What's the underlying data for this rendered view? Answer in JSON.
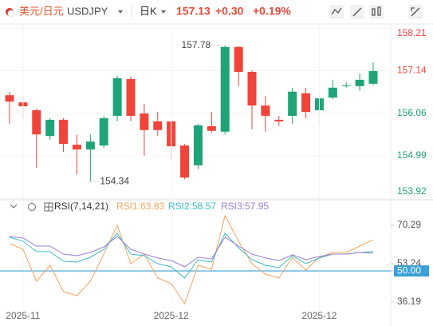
{
  "header": {
    "symbol_name": "美元/日元",
    "symbol": "USDJPY",
    "period": "日K",
    "price": "157.13",
    "change": "+0.30",
    "change_pct": "+0.19%"
  },
  "chart_data": [
    {
      "type": "candlestick",
      "categories": [
        null,
        "2025-11",
        null,
        null,
        null,
        null,
        null,
        null,
        null,
        null,
        null,
        null,
        "2025-12",
        null,
        null,
        null,
        null,
        null,
        null,
        null,
        null,
        null,
        null,
        "2025-12",
        null,
        null,
        null,
        null
      ],
      "open": [
        156.52,
        156.34,
        156.14,
        155.49,
        155.9,
        155.27,
        155.15,
        155.25,
        156.0,
        156.93,
        156.06,
        155.86,
        155.86,
        155.25,
        154.75,
        155.74,
        155.6,
        157.74,
        157.11,
        156.26,
        155.9,
        156.0,
        156.57,
        156.14,
        156.46,
        156.75,
        156.75,
        156.81
      ],
      "high": [
        156.61,
        156.5,
        156.18,
        155.94,
        155.94,
        155.53,
        155.53,
        156.0,
        157.01,
        156.99,
        156.3,
        156.1,
        155.9,
        155.29,
        155.8,
        156.1,
        157.78,
        157.76,
        157.15,
        156.5,
        156.0,
        156.71,
        156.71,
        156.61,
        156.91,
        156.85,
        157.07,
        157.35
      ],
      "low": [
        155.8,
        155.94,
        154.69,
        155.39,
        155.09,
        154.52,
        154.34,
        155.19,
        155.86,
        155.86,
        154.99,
        155.49,
        154.89,
        154.4,
        154.65,
        155.58,
        155.53,
        156.75,
        155.66,
        155.6,
        155.74,
        155.8,
        155.94,
        155.78,
        156.42,
        156.71,
        156.63,
        156.77
      ],
      "close": [
        156.36,
        156.24,
        155.53,
        155.9,
        155.29,
        155.15,
        155.35,
        155.94,
        156.95,
        156.0,
        155.64,
        155.64,
        155.23,
        154.44,
        155.76,
        155.62,
        157.74,
        157.11,
        156.26,
        156.0,
        155.86,
        156.61,
        156.1,
        156.44,
        156.71,
        156.77,
        156.91,
        157.13
      ],
      "up_color": "#1fa378",
      "down_color": "#f0443a",
      "ylim": [
        153.88,
        158.32
      ],
      "yticks": [
        158.21,
        157.14,
        156.06,
        154.99,
        153.92
      ],
      "grid": true
    },
    {
      "type": "line",
      "title": "RSI(7,14,21)",
      "series": [
        {
          "name": "RSI1:63.83",
          "color": "#f5a35c",
          "values": [
            62.12,
            59.63,
            45.42,
            52.53,
            40.81,
            39.03,
            45.42,
            57.5,
            70.29,
            53.24,
            57.5,
            46.85,
            44.36,
            35.48,
            52.53,
            50.75,
            74.55,
            63.19,
            53.24,
            48.62,
            46.85,
            56.08,
            50.4,
            56.08,
            58.21,
            58.21,
            61.05,
            63.83
          ]
        },
        {
          "name": "RSI2:58.57",
          "color": "#3bbcc8",
          "values": [
            64.96,
            63.19,
            58.57,
            58.57,
            54.3,
            53.95,
            56.08,
            59.63,
            66.74,
            57.5,
            56.79,
            53.24,
            51.82,
            46.85,
            55.01,
            53.95,
            66.74,
            60.34,
            55.01,
            52.53,
            51.46,
            56.79,
            53.24,
            55.73,
            57.5,
            57.5,
            58.21,
            58.57
          ]
        },
        {
          "name": "RSI3:57.95",
          "color": "#9b7fd4",
          "values": [
            65.32,
            64.61,
            61.05,
            61.05,
            57.5,
            56.79,
            58.21,
            60.7,
            65.32,
            59.63,
            57.5,
            55.73,
            54.66,
            51.82,
            56.08,
            55.37,
            64.96,
            61.05,
            57.5,
            55.73,
            54.66,
            57.15,
            55.01,
            56.43,
            57.5,
            57.5,
            58.21,
            57.95
          ]
        }
      ],
      "ylim": [
        33.7,
        76.3
      ],
      "yticks": [
        70.29,
        53.24,
        {
          "value": 50,
          "label": "50.00"
        },
        36.19
      ],
      "reference_line": 50
    }
  ]
}
